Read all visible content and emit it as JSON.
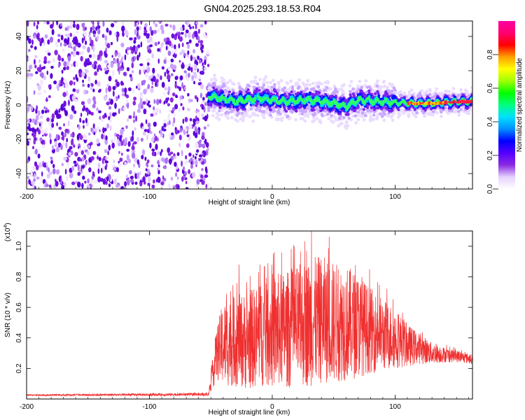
{
  "title": "GN04.2025.293.18.53.R04",
  "colorbar": {
    "label": "Normalized spectral amplitude",
    "range": [
      0,
      1
    ],
    "ticks": [
      "0.0",
      "0.2",
      "0.4",
      "0.6",
      "0.8"
    ],
    "colormap": [
      "#ffffff",
      "#e6d2ff",
      "#8a2be2",
      "#5500ff",
      "#0000ff",
      "#0090ff",
      "#00e0ff",
      "#00ff80",
      "#00ff00",
      "#a0ff00",
      "#ffff00",
      "#ffa000",
      "#ff0000",
      "#ff0070",
      "#ff00a0"
    ]
  },
  "chart_data": [
    {
      "type": "heatmap",
      "xlabel": "Height of straight line (km)",
      "ylabel": "Frequency (Hz)",
      "xlim": [
        -200,
        163
      ],
      "ylim": [
        -49,
        49
      ],
      "x_ticks": [
        -200,
        -100,
        0,
        100
      ],
      "y_ticks": [
        -40,
        -20,
        0,
        20,
        40
      ],
      "noise_region_x": [
        -200,
        -52
      ],
      "signal_region_x": [
        -52,
        163
      ],
      "signal_track": {
        "x": [
          -50,
          -30,
          -10,
          10,
          30,
          50,
          60,
          70,
          90,
          110,
          130,
          150,
          163
        ],
        "frequency": [
          5,
          2,
          4,
          2,
          3,
          1,
          -1,
          3,
          2,
          1,
          1,
          2,
          2
        ]
      },
      "high_amplitude_x": [
        110,
        163
      ]
    },
    {
      "type": "line",
      "xlabel": "Height of straight line (km)",
      "ylabel": "SNR (10 * v/v)",
      "y_multiplier": "(x10",
      "y_multiplier_exp": "4",
      "xlim": [
        -200,
        163
      ],
      "ylim": [
        0,
        1.1
      ],
      "x_ticks": [
        -200,
        -100,
        0,
        100
      ],
      "y_ticks": [
        "0.2",
        "0.4",
        "0.6",
        "0.8",
        "1.0"
      ],
      "series_color": "#f03030",
      "envelope": {
        "x": [
          -200,
          -52,
          -45,
          -40,
          -30,
          -20,
          -10,
          0,
          10,
          20,
          30,
          40,
          50,
          60,
          70,
          80,
          90,
          100,
          110,
          120,
          130,
          140,
          150,
          163
        ],
        "y_mean": [
          0.025,
          0.03,
          0.3,
          0.36,
          0.38,
          0.38,
          0.42,
          0.45,
          0.45,
          0.47,
          0.5,
          0.52,
          0.5,
          0.5,
          0.48,
          0.45,
          0.42,
          0.4,
          0.35,
          0.33,
          0.3,
          0.29,
          0.28,
          0.26
        ],
        "y_amp": [
          0.005,
          0.01,
          0.18,
          0.28,
          0.3,
          0.32,
          0.34,
          0.38,
          0.38,
          0.4,
          0.42,
          0.42,
          0.4,
          0.38,
          0.34,
          0.28,
          0.24,
          0.2,
          0.14,
          0.1,
          0.07,
          0.05,
          0.04,
          0.03
        ]
      },
      "peaks": [
        {
          "x": -27,
          "y": 0.88
        },
        {
          "x": -10,
          "y": 0.88
        },
        {
          "x": 32,
          "y": 1.1
        },
        {
          "x": 28,
          "y": 0.97
        }
      ]
    }
  ]
}
